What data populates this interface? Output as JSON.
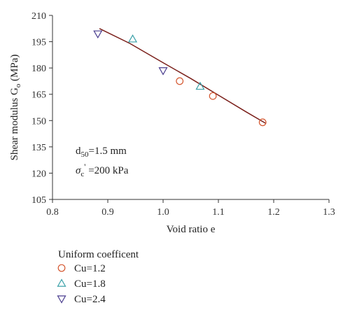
{
  "chart_data": {
    "type": "scatter",
    "title": "",
    "xlabel": "Void ratio e",
    "ylabel_main": "Shear modulus G",
    "ylabel_sub": "o",
    "ylabel_unit": " (MPa)",
    "xlim": [
      0.8,
      1.3
    ],
    "ylim": [
      105,
      210
    ],
    "xticks": [
      0.8,
      0.9,
      1.0,
      1.1,
      1.2,
      1.3
    ],
    "xtick_labels": [
      "0.8",
      "0.9",
      "1.0",
      "1.1",
      "1.2",
      "1.3"
    ],
    "yticks": [
      105,
      120,
      135,
      150,
      165,
      180,
      195,
      210
    ],
    "ytick_labels": [
      "105",
      "120",
      "135",
      "150",
      "165",
      "180",
      "195",
      "210"
    ],
    "grid": false,
    "annotations": [
      {
        "main": "d",
        "sub": "50",
        "rest": "=1.5 mm"
      },
      {
        "main": "σ",
        "sub": "c",
        "sup": "'",
        "rest": " =200 kPa"
      }
    ],
    "legend": {
      "title": "Uniform coefficent",
      "placement": "bottom-left, below plot"
    },
    "series": [
      {
        "name": "Cu=1.2",
        "marker": "circle",
        "color": "#d4552d",
        "points": [
          [
            1.03,
            172.5
          ],
          [
            1.09,
            164
          ],
          [
            1.18,
            149
          ]
        ]
      },
      {
        "name": "Cu=1.8",
        "marker": "triangle-up",
        "color": "#3aa0a8",
        "points": [
          [
            0.945,
            196.5
          ],
          [
            1.067,
            169.5
          ]
        ]
      },
      {
        "name": "Cu=2.4",
        "marker": "triangle-down",
        "color": "#4a3d8f",
        "points": [
          [
            0.882,
            199.5
          ],
          [
            1.0,
            178.5
          ]
        ]
      }
    ],
    "fit_line": {
      "color": "#7a1f1a",
      "points": [
        [
          0.885,
          202.5
        ],
        [
          0.94,
          194
        ],
        [
          1.0,
          183
        ],
        [
          1.05,
          174
        ],
        [
          1.1,
          164.5
        ],
        [
          1.15,
          155
        ],
        [
          1.185,
          148.5
        ]
      ]
    }
  }
}
